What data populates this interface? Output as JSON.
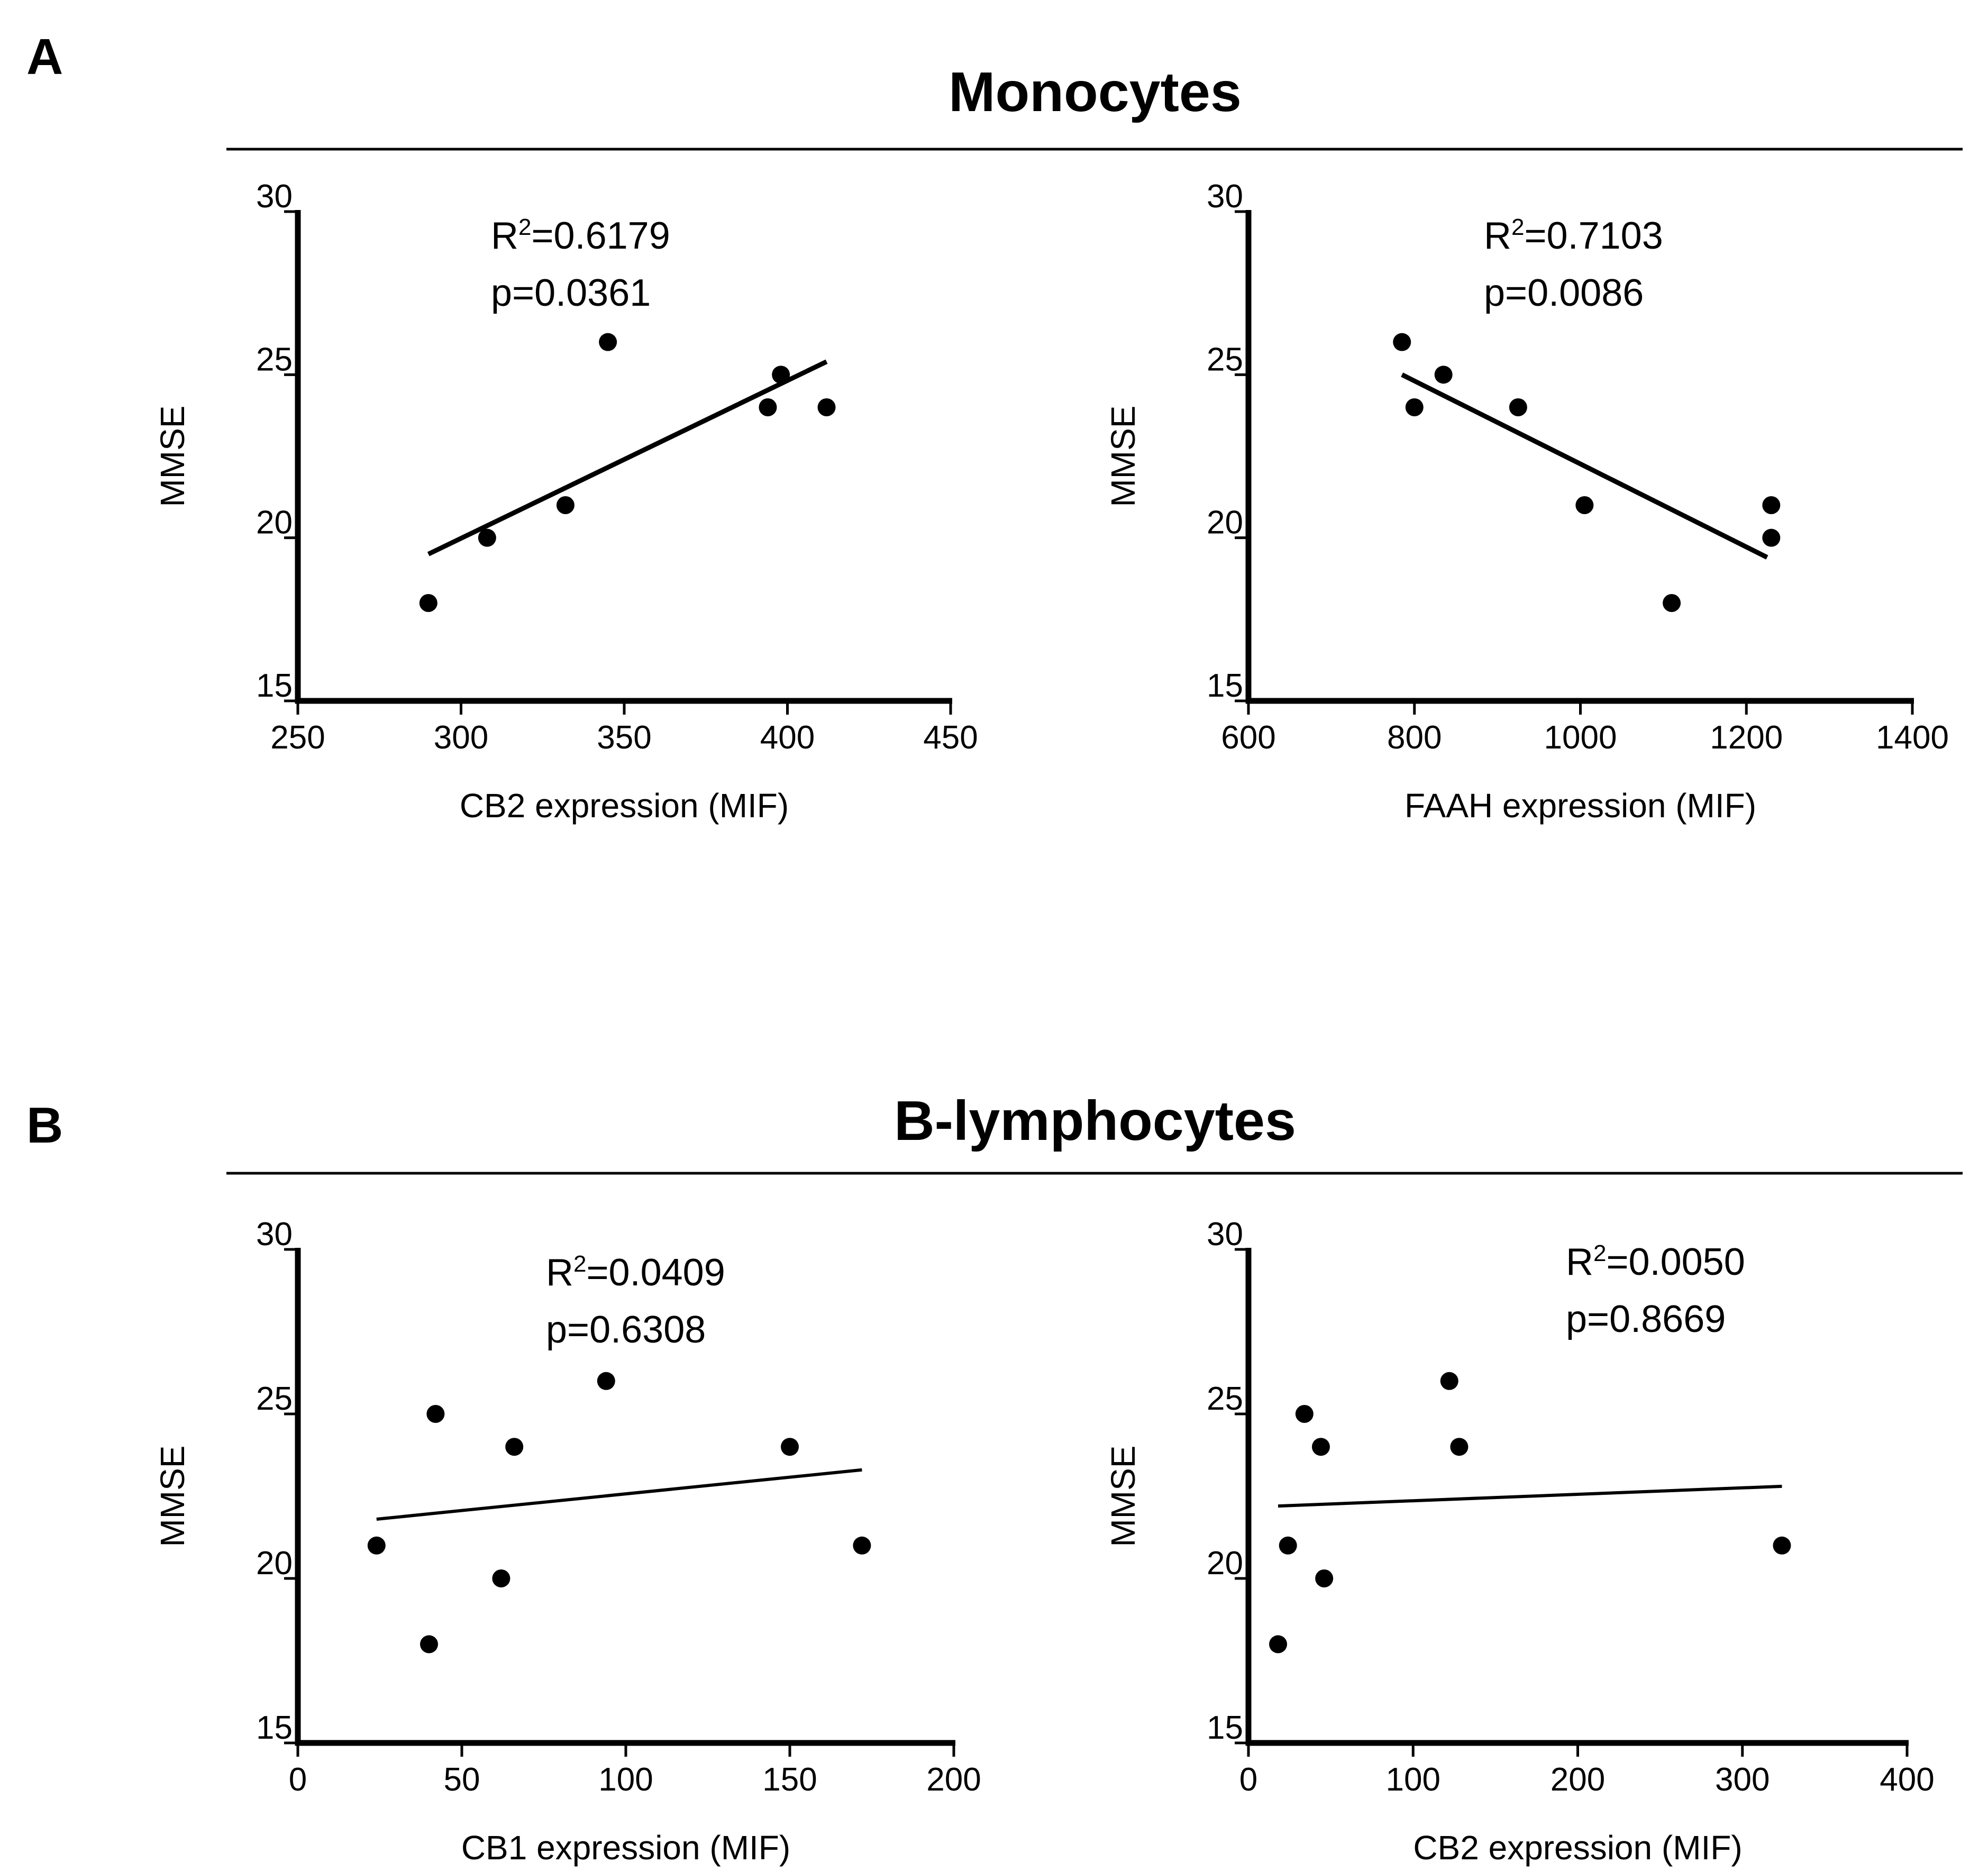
{
  "sections": [
    {
      "letter": "A",
      "title": "Monocytes"
    },
    {
      "letter": "B",
      "title": "B-lymphocytes"
    }
  ],
  "chart_data": [
    {
      "type": "scatter",
      "section": "Monocytes",
      "xlabel": "CB2 expression (MIF)",
      "ylabel": "MMSE",
      "xlim": [
        250,
        450
      ],
      "ylim": [
        15,
        30
      ],
      "xticks": [
        250,
        300,
        350,
        400,
        450
      ],
      "yticks": [
        15,
        20,
        25,
        30
      ],
      "points": [
        [
          290,
          18
        ],
        [
          308,
          20
        ],
        [
          332,
          21
        ],
        [
          345,
          26
        ],
        [
          394,
          24
        ],
        [
          398,
          25
        ],
        [
          412,
          24
        ]
      ],
      "fit_line": [
        [
          290,
          19.5
        ],
        [
          412,
          25.4
        ]
      ],
      "r2_label": "R",
      "r2_sup": "2",
      "r2_value": "=0.6179",
      "p_label": "p=0.0361"
    },
    {
      "type": "scatter",
      "section": "Monocytes",
      "xlabel": "FAAH expression (MIF)",
      "ylabel": "MMSE",
      "xlim": [
        600,
        1400
      ],
      "ylim": [
        15,
        30
      ],
      "xticks": [
        600,
        800,
        1000,
        1200,
        1400
      ],
      "yticks": [
        15,
        20,
        25,
        30
      ],
      "points": [
        [
          785,
          26
        ],
        [
          800,
          24
        ],
        [
          835,
          25
        ],
        [
          925,
          24
        ],
        [
          1005,
          21
        ],
        [
          1110,
          18
        ],
        [
          1230,
          21
        ],
        [
          1230,
          20
        ]
      ],
      "fit_line": [
        [
          785,
          25.0
        ],
        [
          1225,
          19.4
        ]
      ],
      "r2_label": "R",
      "r2_sup": "2",
      "r2_value": "=0.7103",
      "p_label": "p=0.0086"
    },
    {
      "type": "scatter",
      "section": "B-lymphocytes",
      "xlabel": "CB1 expression (MIF)",
      "ylabel": "MMSE",
      "xlim": [
        0,
        200
      ],
      "ylim": [
        15,
        30
      ],
      "xticks": [
        0,
        50,
        100,
        150,
        200
      ],
      "yticks": [
        15,
        20,
        25,
        30
      ],
      "points": [
        [
          24,
          21
        ],
        [
          40,
          18
        ],
        [
          42,
          25
        ],
        [
          62,
          20
        ],
        [
          66,
          24
        ],
        [
          94,
          26
        ],
        [
          150,
          24
        ],
        [
          172,
          21
        ]
      ],
      "fit_line": [
        [
          24,
          21.8
        ],
        [
          172,
          23.3
        ]
      ],
      "r2_label": "R",
      "r2_sup": "2",
      "r2_value": "=0.0409",
      "p_label": "p=0.6308"
    },
    {
      "type": "scatter",
      "section": "B-lymphocytes",
      "xlabel": "CB2 expression (MIF)",
      "ylabel": "MMSE",
      "xlim": [
        0,
        400
      ],
      "ylim": [
        15,
        30
      ],
      "xticks": [
        0,
        100,
        200,
        300,
        400
      ],
      "yticks": [
        15,
        20,
        25,
        30
      ],
      "points": [
        [
          18,
          18
        ],
        [
          24,
          21
        ],
        [
          34,
          25
        ],
        [
          44,
          24
        ],
        [
          46,
          20
        ],
        [
          122,
          26
        ],
        [
          128,
          24
        ],
        [
          324,
          21
        ]
      ],
      "fit_line": [
        [
          18,
          22.2
        ],
        [
          324,
          22.8
        ]
      ],
      "r2_label": "R",
      "r2_sup": "2",
      "r2_value": "=0.0050",
      "p_label": "p=0.8669"
    }
  ]
}
